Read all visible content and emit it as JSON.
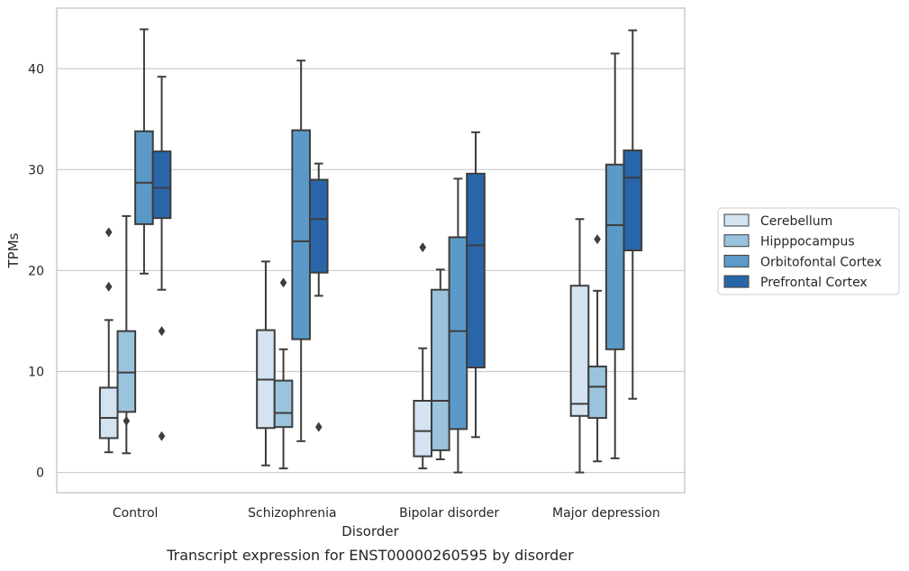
{
  "chart_data": {
    "type": "boxplot",
    "title": "",
    "caption": "Transcript expression for ENST00000260595 by disorder",
    "xlabel": "Disorder",
    "ylabel": "TPMs",
    "ylim": [
      -2,
      46
    ],
    "yticks": [
      0,
      10,
      20,
      30,
      40
    ],
    "grid": "horizontal",
    "legend_position": "right",
    "categories": [
      "Control",
      "Schizophrenia",
      "Bipolar disorder",
      "Major depression"
    ],
    "series": [
      {
        "name": "Cerebellum",
        "color": "#d4e3f2",
        "boxes": [
          {
            "whisker_low": 2.0,
            "q1": 3.4,
            "median": 5.4,
            "q3": 8.4,
            "whisker_high": 15.1,
            "outliers": [
              18.4,
              23.8
            ]
          },
          {
            "whisker_low": 0.7,
            "q1": 4.4,
            "median": 9.2,
            "q3": 14.1,
            "whisker_high": 20.9,
            "outliers": []
          },
          {
            "whisker_low": 0.4,
            "q1": 1.6,
            "median": 4.1,
            "q3": 7.1,
            "whisker_high": 12.3,
            "outliers": [
              22.3
            ]
          },
          {
            "whisker_low": 0.0,
            "q1": 5.6,
            "median": 6.8,
            "q3": 18.5,
            "whisker_high": 25.1,
            "outliers": []
          }
        ]
      },
      {
        "name": "Hipppocampus",
        "color": "#9ac3dd",
        "boxes": [
          {
            "whisker_low": 1.9,
            "q1": 6.0,
            "median": 9.9,
            "q3": 14.0,
            "whisker_high": 25.4,
            "outliers": [
              5.1
            ]
          },
          {
            "whisker_low": 0.4,
            "q1": 4.5,
            "median": 5.9,
            "q3": 9.1,
            "whisker_high": 12.2,
            "outliers": [
              18.8
            ]
          },
          {
            "whisker_low": 1.3,
            "q1": 2.2,
            "median": 7.1,
            "q3": 18.1,
            "whisker_high": 20.1,
            "outliers": []
          },
          {
            "whisker_low": 1.1,
            "q1": 5.4,
            "median": 8.5,
            "q3": 10.5,
            "whisker_high": 18.0,
            "outliers": [
              23.1
            ]
          }
        ]
      },
      {
        "name": "Orbitofontal Cortex",
        "color": "#5b9ac8",
        "boxes": [
          {
            "whisker_low": 19.7,
            "q1": 24.6,
            "median": 28.7,
            "q3": 33.8,
            "whisker_high": 43.9,
            "outliers": []
          },
          {
            "whisker_low": 3.1,
            "q1": 13.2,
            "median": 22.9,
            "q3": 33.9,
            "whisker_high": 40.8,
            "outliers": []
          },
          {
            "whisker_low": 0.0,
            "q1": 4.3,
            "median": 14.0,
            "q3": 23.3,
            "whisker_high": 29.1,
            "outliers": []
          },
          {
            "whisker_low": 1.4,
            "q1": 12.2,
            "median": 24.5,
            "q3": 30.5,
            "whisker_high": 41.5,
            "outliers": []
          }
        ]
      },
      {
        "name": "Prefrontal Cortex",
        "color": "#2866a9",
        "boxes": [
          {
            "whisker_low": 18.1,
            "q1": 25.2,
            "median": 28.2,
            "q3": 31.8,
            "whisker_high": 39.2,
            "outliers": [
              14.0,
              3.6
            ]
          },
          {
            "whisker_low": 17.5,
            "q1": 19.8,
            "median": 25.1,
            "q3": 29.0,
            "whisker_high": 30.6,
            "outliers": [
              4.5
            ]
          },
          {
            "whisker_low": 3.5,
            "q1": 10.4,
            "median": 22.5,
            "q3": 29.6,
            "whisker_high": 33.7,
            "outliers": []
          },
          {
            "whisker_low": 7.3,
            "q1": 22.0,
            "median": 29.2,
            "q3": 31.9,
            "whisker_high": 43.8,
            "outliers": []
          }
        ]
      }
    ]
  }
}
